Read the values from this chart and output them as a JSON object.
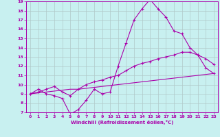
{
  "xlabel": "Windchill (Refroidissement éolien,°C)",
  "xlim": [
    -0.5,
    23.5
  ],
  "ylim": [
    7,
    19
  ],
  "xticks": [
    0,
    1,
    2,
    3,
    4,
    5,
    6,
    7,
    8,
    9,
    10,
    11,
    12,
    13,
    14,
    15,
    16,
    17,
    18,
    19,
    20,
    21,
    22,
    23
  ],
  "yticks": [
    7,
    8,
    9,
    10,
    11,
    12,
    13,
    14,
    15,
    16,
    17,
    18,
    19
  ],
  "background_color": "#c8f0f0",
  "line_color": "#aa00aa",
  "grid_color": "#b0c8c8",
  "line1_x": [
    0,
    1,
    2,
    3,
    4,
    5,
    6,
    7,
    8,
    9,
    10,
    11,
    12,
    13,
    14,
    15,
    16,
    17,
    18,
    19,
    20,
    21,
    22,
    23
  ],
  "line1_y": [
    9.0,
    9.5,
    9.0,
    8.8,
    8.5,
    6.8,
    7.3,
    8.3,
    9.5,
    9.0,
    9.2,
    12.0,
    14.5,
    17.0,
    18.2,
    19.2,
    18.2,
    17.3,
    15.8,
    15.5,
    14.0,
    13.2,
    11.8,
    11.2
  ],
  "line2_x": [
    0,
    1,
    2,
    3,
    4,
    5,
    6,
    7,
    8,
    9,
    10,
    11,
    12,
    13,
    14,
    15,
    16,
    17,
    18,
    19,
    20,
    21,
    22,
    23
  ],
  "line2_y": [
    9.0,
    9.2,
    9.5,
    9.8,
    9.2,
    8.8,
    9.5,
    10.0,
    10.3,
    10.5,
    10.8,
    11.0,
    11.5,
    12.0,
    12.3,
    12.5,
    12.8,
    13.0,
    13.2,
    13.5,
    13.5,
    13.2,
    12.8,
    12.2
  ],
  "line3_x": [
    0,
    1,
    2,
    3,
    4,
    5,
    6,
    7,
    8,
    9,
    10,
    11,
    12,
    13,
    14,
    15,
    16,
    17,
    18,
    19,
    20,
    21,
    22,
    23
  ],
  "line3_y": [
    9.0,
    9.1,
    9.2,
    9.3,
    9.4,
    9.5,
    9.5,
    9.6,
    9.7,
    9.8,
    9.9,
    10.0,
    10.1,
    10.2,
    10.3,
    10.4,
    10.5,
    10.6,
    10.7,
    10.8,
    10.9,
    11.0,
    11.1,
    11.2
  ]
}
